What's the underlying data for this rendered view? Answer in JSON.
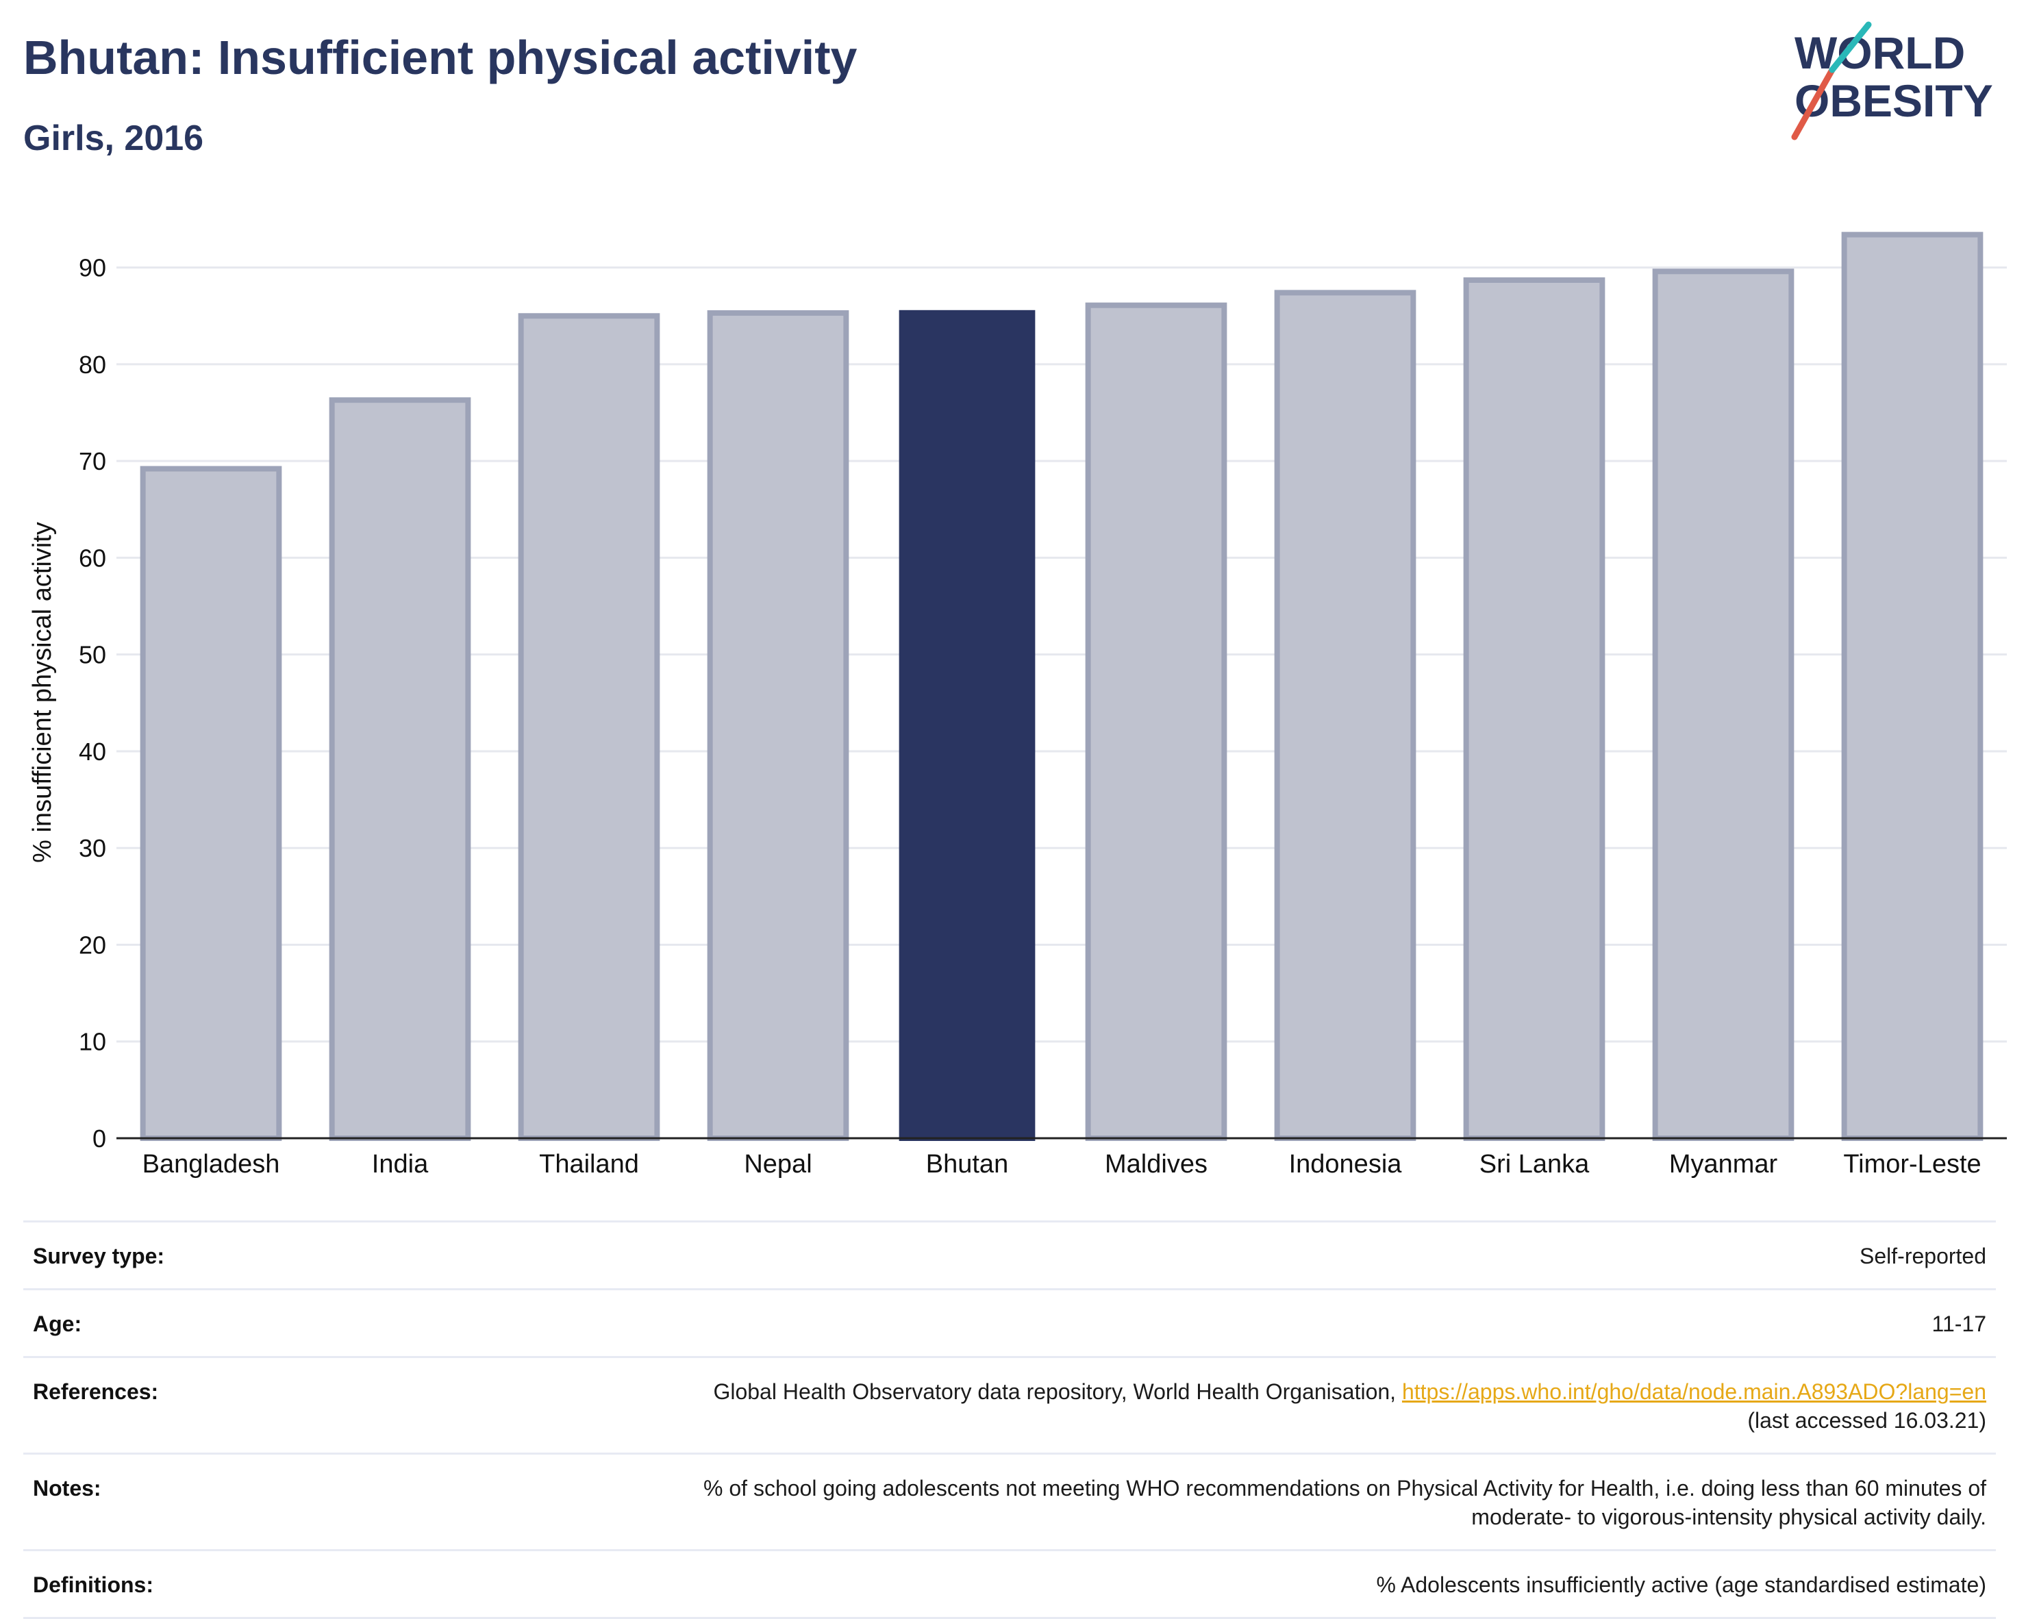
{
  "header": {
    "title": "Bhutan: Insufficient physical activity",
    "subtitle": "Girls, 2016"
  },
  "logo": {
    "line1": "WORLD",
    "line2": "OBESITY"
  },
  "colors": {
    "highlight": "#2a3561",
    "bar": "#bfc2cf",
    "bar_stroke": "#9da3b8",
    "text": "#29365f",
    "logo_red": "#e05a47",
    "logo_teal": "#2ab8b8",
    "link": "#e6a817"
  },
  "chart_data": {
    "type": "bar",
    "categories": [
      "Bangladesh",
      "India",
      "Thailand",
      "Nepal",
      "Bhutan",
      "Maldives",
      "Indonesia",
      "Sri Lanka",
      "Myanmar",
      "Timor-Leste"
    ],
    "values": [
      69.2,
      76.3,
      85.0,
      85.3,
      85.6,
      86.1,
      87.4,
      88.7,
      89.6,
      93.4
    ],
    "highlight": "Bhutan",
    "ylabel": "% insufficient physical activity",
    "xlabel": "",
    "ylim": [
      0,
      95
    ],
    "yticks": [
      0,
      10,
      20,
      30,
      40,
      50,
      60,
      70,
      80,
      90
    ],
    "grid": true
  },
  "info": {
    "survey_label": "Survey type:",
    "survey_value": "Self-reported",
    "age_label": "Age:",
    "age_value": "11-17",
    "references_label": "References:",
    "references_text": "Global Health Observatory data repository, World Health Organisation, ",
    "references_link": "https://apps.who.int/gho/data/node.main.A893ADO?lang=en",
    "references_accessed": "(last accessed 16.03.21)",
    "notes_label": "Notes:",
    "notes_line1": "% of school going adolescents not meeting WHO recommendations on Physical Activity for Health, i.e. doing less than 60 minutes of",
    "notes_line2": "moderate- to vigorous-intensity physical activity daily.",
    "definitions_label": "Definitions:",
    "definitions_value": "% Adolescents insufficiently active (age standardised estimate)"
  }
}
